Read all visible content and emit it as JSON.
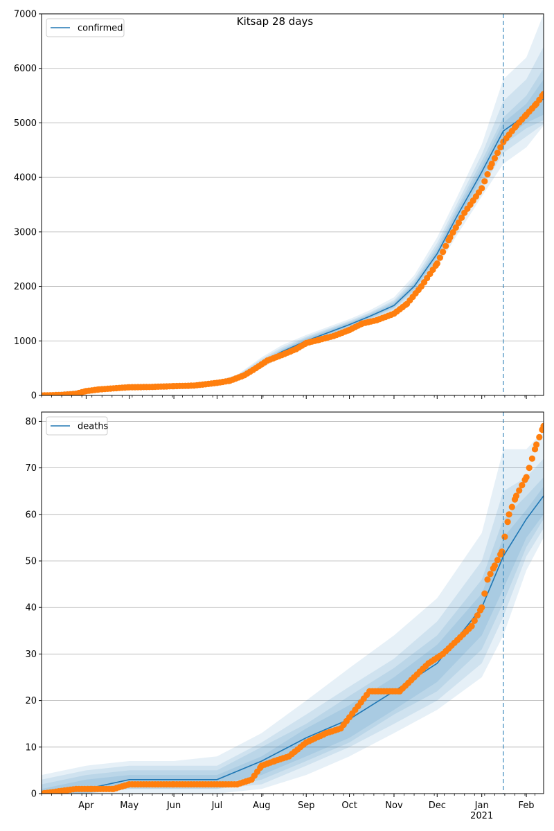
{
  "chart_data": [
    {
      "type": "line",
      "title": "Kitsap 28 days",
      "legend": {
        "label": "confirmed",
        "placement": "top-left"
      },
      "ylim": [
        0,
        7000
      ],
      "yticks": [
        0,
        1000,
        2000,
        3000,
        4000,
        5000,
        6000,
        7000
      ],
      "grid": "y",
      "forecast_start": "2021-01-16",
      "model": [
        [
          "2020-03-01",
          0
        ],
        [
          "2020-04-01",
          80
        ],
        [
          "2020-04-15",
          130
        ],
        [
          "2020-05-01",
          150
        ],
        [
          "2020-06-01",
          170
        ],
        [
          "2020-07-01",
          230
        ],
        [
          "2020-07-15",
          330
        ],
        [
          "2020-08-01",
          600
        ],
        [
          "2020-08-15",
          800
        ],
        [
          "2020-09-01",
          1000
        ],
        [
          "2020-10-01",
          1300
        ],
        [
          "2020-10-15",
          1450
        ],
        [
          "2020-11-01",
          1650
        ],
        [
          "2020-11-15",
          2000
        ],
        [
          "2020-12-01",
          2600
        ],
        [
          "2020-12-15",
          3300
        ],
        [
          "2021-01-01",
          4100
        ],
        [
          "2021-01-16",
          4850
        ],
        [
          "2021-02-01",
          5150
        ],
        [
          "2021-02-13",
          5450
        ]
      ],
      "bands": [
        {
          "lower": [
            0,
            60,
            110,
            130,
            150,
            200,
            290,
            500,
            700,
            900,
            1200,
            1340,
            1520,
            1820,
            2350,
            2950,
            3650,
            4250,
            4550,
            4950
          ],
          "upper": [
            40,
            110,
            160,
            180,
            200,
            270,
            380,
            700,
            920,
            1110,
            1400,
            1560,
            1800,
            2200,
            2900,
            3650,
            4600,
            5800,
            6200,
            7000
          ]
        },
        {
          "lower": [
            0,
            65,
            115,
            135,
            155,
            205,
            300,
            540,
            740,
            930,
            1230,
            1380,
            1570,
            1880,
            2430,
            3050,
            3800,
            4450,
            4750,
            4980
          ],
          "upper": [
            30,
            100,
            150,
            170,
            190,
            260,
            370,
            670,
            880,
            1080,
            1370,
            1520,
            1750,
            2130,
            2800,
            3530,
            4420,
            5400,
            5800,
            6400
          ]
        },
        {
          "lower": [
            0,
            70,
            120,
            140,
            160,
            215,
            310,
            560,
            760,
            950,
            1250,
            1400,
            1600,
            1920,
            2480,
            3130,
            3900,
            4600,
            4900,
            5050
          ],
          "upper": [
            20,
            95,
            145,
            165,
            185,
            250,
            355,
            640,
            850,
            1060,
            1350,
            1500,
            1720,
            2080,
            2730,
            3450,
            4300,
            5100,
            5500,
            6000
          ]
        },
        {
          "lower": [
            0,
            75,
            125,
            145,
            165,
            220,
            320,
            580,
            780,
            970,
            1270,
            1420,
            1620,
            1950,
            2540,
            3200,
            4000,
            4700,
            5000,
            5150
          ],
          "upper": [
            10,
            90,
            140,
            160,
            180,
            245,
            345,
            620,
            830,
            1040,
            1330,
            1480,
            1690,
            2050,
            2670,
            3400,
            4200,
            5000,
            5350,
            5800
          ]
        }
      ],
      "observed": [
        [
          "2020-03-01",
          0
        ],
        [
          "2020-03-15",
          10
        ],
        [
          "2020-03-25",
          30
        ],
        [
          "2020-04-01",
          80
        ],
        [
          "2020-04-10",
          110
        ],
        [
          "2020-04-20",
          130
        ],
        [
          "2020-05-01",
          150
        ],
        [
          "2020-05-15",
          155
        ],
        [
          "2020-06-01",
          170
        ],
        [
          "2020-06-15",
          180
        ],
        [
          "2020-07-01",
          230
        ],
        [
          "2020-07-10",
          270
        ],
        [
          "2020-07-20",
          370
        ],
        [
          "2020-07-28",
          500
        ],
        [
          "2020-08-05",
          640
        ],
        [
          "2020-08-15",
          740
        ],
        [
          "2020-08-25",
          850
        ],
        [
          "2020-09-01",
          960
        ],
        [
          "2020-09-10",
          1020
        ],
        [
          "2020-09-20",
          1090
        ],
        [
          "2020-10-01",
          1200
        ],
        [
          "2020-10-10",
          1320
        ],
        [
          "2020-10-20",
          1380
        ],
        [
          "2020-11-01",
          1500
        ],
        [
          "2020-11-10",
          1680
        ],
        [
          "2020-11-20",
          2000
        ],
        [
          "2020-12-01",
          2420
        ],
        [
          "2020-12-10",
          2900
        ],
        [
          "2020-12-20",
          3350
        ],
        [
          "2021-01-01",
          3800
        ],
        [
          "2021-01-08",
          4250
        ],
        [
          "2021-01-16",
          4650
        ],
        [
          "2021-01-25",
          4950
        ],
        [
          "2021-02-01",
          5150
        ],
        [
          "2021-02-08",
          5350
        ],
        [
          "2021-02-13",
          5530
        ]
      ]
    },
    {
      "type": "line",
      "title": "",
      "legend": {
        "label": "deaths",
        "placement": "top-left"
      },
      "ylim": [
        0,
        82
      ],
      "yticks": [
        0,
        10,
        20,
        30,
        40,
        50,
        60,
        70,
        80
      ],
      "grid": "y",
      "forecast_start": "2021-01-16",
      "model": [
        [
          "2020-03-01",
          0
        ],
        [
          "2020-04-01",
          1
        ],
        [
          "2020-05-01",
          3
        ],
        [
          "2020-06-01",
          3
        ],
        [
          "2020-07-01",
          3
        ],
        [
          "2020-08-01",
          7
        ],
        [
          "2020-09-01",
          12
        ],
        [
          "2020-10-01",
          16
        ],
        [
          "2020-11-01",
          22
        ],
        [
          "2020-12-01",
          28
        ],
        [
          "2021-01-01",
          40
        ],
        [
          "2021-01-16",
          51
        ],
        [
          "2021-02-01",
          59
        ],
        [
          "2021-02-13",
          64
        ]
      ],
      "bands": [
        {
          "lower": [
            0,
            0,
            0,
            0,
            0,
            1,
            4,
            8,
            13,
            18,
            25,
            34,
            48,
            55
          ],
          "upper": [
            4,
            6,
            7,
            7,
            8,
            13,
            20,
            27,
            34,
            42,
            56,
            74,
            74,
            78
          ]
        },
        {
          "lower": [
            0,
            0,
            1,
            1,
            1,
            2,
            6,
            10,
            15,
            20,
            28,
            38,
            51,
            57
          ],
          "upper": [
            3,
            5,
            6,
            6,
            6,
            11,
            17,
            23,
            29,
            37,
            50,
            65,
            68,
            72
          ]
        },
        {
          "lower": [
            0,
            0,
            1,
            1,
            1,
            3,
            7,
            11,
            17,
            22,
            31,
            41,
            53,
            59
          ],
          "upper": [
            2,
            4,
            5,
            5,
            5,
            10,
            15,
            21,
            27,
            34,
            46,
            59,
            64,
            68
          ]
        },
        {
          "lower": [
            0,
            0,
            2,
            2,
            2,
            4,
            8,
            12,
            18,
            24,
            34,
            44,
            55,
            60
          ],
          "upper": [
            1,
            3,
            4,
            4,
            4,
            8,
            14,
            19,
            25,
            32,
            43,
            55,
            61,
            66
          ]
        }
      ],
      "observed": [
        [
          "2020-03-01",
          0
        ],
        [
          "2020-03-25",
          1
        ],
        [
          "2020-04-05",
          1
        ],
        [
          "2020-04-20",
          1
        ],
        [
          "2020-05-01",
          2
        ],
        [
          "2020-06-01",
          2
        ],
        [
          "2020-07-01",
          2
        ],
        [
          "2020-07-15",
          2
        ],
        [
          "2020-07-25",
          3
        ],
        [
          "2020-08-01",
          6
        ],
        [
          "2020-08-10",
          7
        ],
        [
          "2020-08-20",
          8
        ],
        [
          "2020-09-01",
          11
        ],
        [
          "2020-09-15",
          13
        ],
        [
          "2020-09-25",
          14
        ],
        [
          "2020-10-05",
          18
        ],
        [
          "2020-10-15",
          22
        ],
        [
          "2020-10-25",
          22
        ],
        [
          "2020-11-05",
          22
        ],
        [
          "2020-11-15",
          25
        ],
        [
          "2020-11-25",
          28
        ],
        [
          "2020-12-05",
          30
        ],
        [
          "2020-12-15",
          33
        ],
        [
          "2020-12-25",
          36
        ],
        [
          "2021-01-01",
          40
        ],
        [
          "2021-01-05",
          46
        ],
        [
          "2021-01-10",
          49
        ],
        [
          "2021-01-15",
          52
        ],
        [
          "2021-01-20",
          60
        ],
        [
          "2021-01-25",
          64
        ],
        [
          "2021-02-01",
          68
        ],
        [
          "2021-02-05",
          72
        ],
        [
          "2021-02-08",
          75
        ],
        [
          "2021-02-13",
          79
        ]
      ]
    }
  ],
  "x_axis": {
    "range": [
      "2020-03-01",
      "2021-02-13"
    ],
    "ticks": [
      {
        "date": "2020-04-01",
        "label": "Apr"
      },
      {
        "date": "2020-05-01",
        "label": "May"
      },
      {
        "date": "2020-06-01",
        "label": "Jun"
      },
      {
        "date": "2020-07-01",
        "label": "Jul"
      },
      {
        "date": "2020-08-01",
        "label": "Aug"
      },
      {
        "date": "2020-09-01",
        "label": "Sep"
      },
      {
        "date": "2020-10-01",
        "label": "Oct"
      },
      {
        "date": "2020-11-01",
        "label": "Nov"
      },
      {
        "date": "2020-12-01",
        "label": "Dec"
      },
      {
        "date": "2021-01-01",
        "label": "Jan"
      },
      {
        "date": "2021-02-01",
        "label": "Feb"
      }
    ],
    "year_label": {
      "date": "2021-01-01",
      "label": "2021"
    }
  },
  "colors": {
    "model_line": "#1f77b4",
    "observed": "#ff7f0e",
    "band": "#1f77b4",
    "grid": "#b0b0b0",
    "forecast_line": "#1f77b4"
  }
}
